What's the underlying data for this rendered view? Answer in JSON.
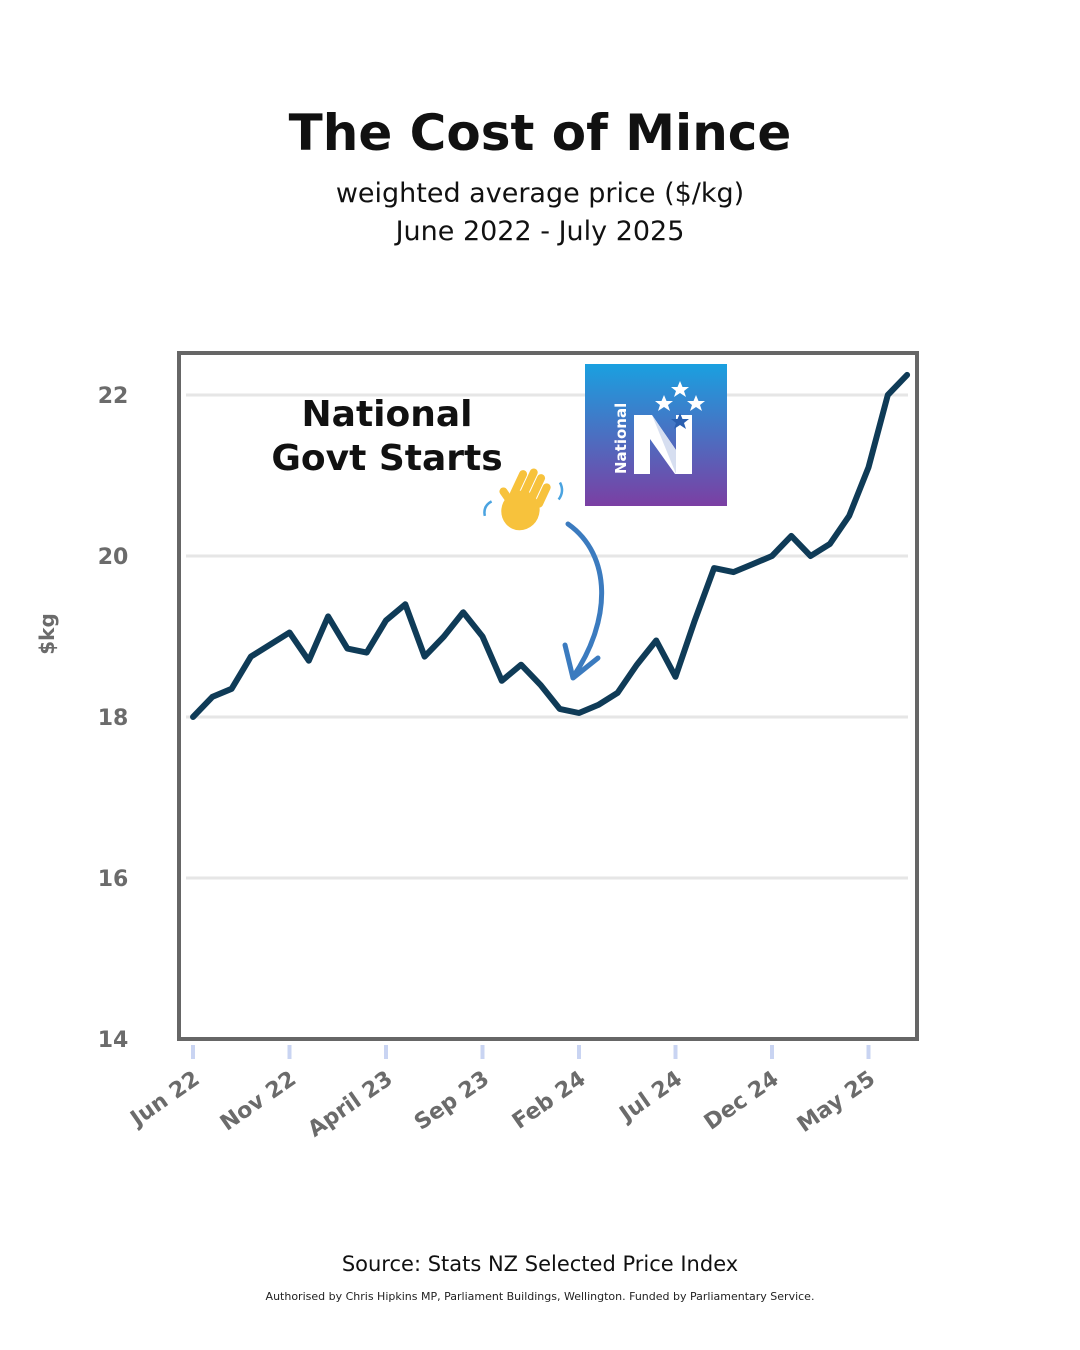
{
  "header": {
    "title": "The Cost of Mince",
    "subtitle_line1": "weighted average price ($/kg)",
    "subtitle_line2": "June 2022 - July 2025"
  },
  "footer": {
    "source": "Source: Stats NZ Selected Price Index",
    "authorised": "Authorised by Chris Hipkins MP, Parliament Buildings, Wellington. Funded by Parliamentary Service."
  },
  "annotation": {
    "line1": "National",
    "line2": "Govt Starts",
    "emoji": "waving-hand",
    "arrow_target_date": "2024-01",
    "logo_text": "National",
    "logo_letter": "N"
  },
  "colors": {
    "line": "#0f3b57",
    "arrow": "#3b7bbf",
    "axis_text": "#6b6b6b",
    "frame": "#666666",
    "grid": "#e6e6e6",
    "logo_top": "#1aa0e0",
    "logo_bottom": "#7b3fa3"
  },
  "chart_data": {
    "type": "line",
    "title": "",
    "xlabel": "",
    "ylabel": "$kg",
    "ylim": [
      14,
      22
    ],
    "yticks": [
      14,
      16,
      18,
      20,
      22
    ],
    "grid": true,
    "x_tick_labels": [
      "Jun 22",
      "Nov 22",
      "April 23",
      "Sep 23",
      "Feb 24",
      "Jul 24",
      "Dec 24",
      "May 25"
    ],
    "x_tick_dates": [
      "2022-06",
      "2022-11",
      "2023-04",
      "2023-09",
      "2024-02",
      "2024-07",
      "2024-12",
      "2025-05"
    ],
    "series": [
      {
        "x": [
          "2022-06",
          "2022-07",
          "2022-08",
          "2022-09",
          "2022-10",
          "2022-11",
          "2022-12",
          "2023-01",
          "2023-02",
          "2023-03",
          "2023-04",
          "2023-05",
          "2023-06",
          "2023-07",
          "2023-08",
          "2023-09",
          "2023-10",
          "2023-11",
          "2023-12",
          "2024-01",
          "2024-02",
          "2024-03",
          "2024-04",
          "2024-05",
          "2024-06",
          "2024-07",
          "2024-08",
          "2024-09",
          "2024-10",
          "2024-11",
          "2024-12",
          "2025-01",
          "2025-02",
          "2025-03",
          "2025-04",
          "2025-05",
          "2025-06",
          "2025-07"
        ],
        "values": [
          18.0,
          18.25,
          18.35,
          18.75,
          18.9,
          19.05,
          18.7,
          19.25,
          18.85,
          18.8,
          19.2,
          19.4,
          18.75,
          19.0,
          19.3,
          19.0,
          18.45,
          18.65,
          18.4,
          18.1,
          18.05,
          18.15,
          18.3,
          18.65,
          18.95,
          18.5,
          19.2,
          19.85,
          19.8,
          19.9,
          20.0,
          20.25,
          20.0,
          20.15,
          20.5,
          21.1,
          22.0,
          22.25
        ]
      }
    ]
  }
}
